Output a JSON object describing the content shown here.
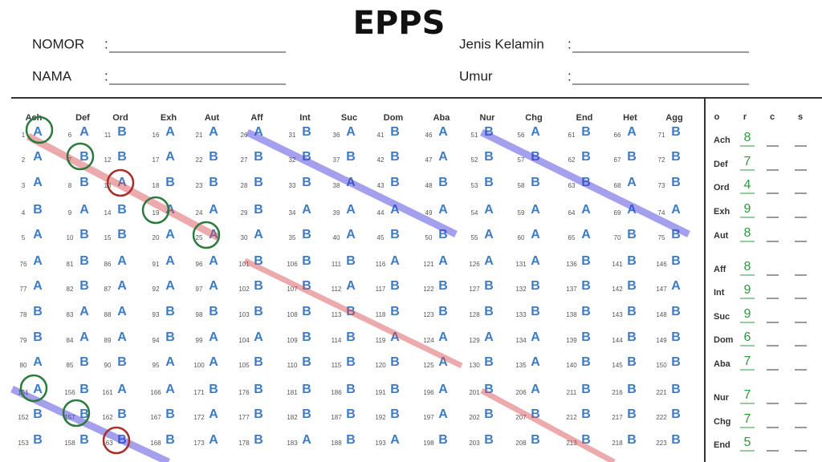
{
  "title": "EPPS",
  "form": {
    "fields": [
      {
        "label": "NOMOR",
        "sep": ":"
      },
      {
        "label": "NAMA",
        "sep": ":"
      },
      {
        "label": "Jenis Kelamin",
        "sep": ":"
      },
      {
        "label": "Umur",
        "sep": ":"
      }
    ]
  },
  "grid": {
    "columns": [
      "Ach",
      "Def",
      "Ord",
      "Exh",
      "Aut",
      "Aff",
      "Int",
      "Suc",
      "Dom",
      "Aba",
      "Nur",
      "Chg",
      "End",
      "Het",
      "Agg"
    ],
    "blocks": [
      {
        "rows": [
          {
            "numbers": [
              1,
              6,
              11,
              16,
              21,
              26,
              31,
              36,
              41,
              46,
              51,
              56,
              61,
              66,
              71
            ],
            "marks": [
              "A",
              "A",
              "B",
              "A",
              "A",
              "A",
              "B",
              "A",
              "B",
              "A",
              "B",
              "A",
              "B",
              "A",
              "B"
            ]
          },
          {
            "numbers": [
              2,
              7,
              12,
              17,
              22,
              27,
              32,
              37,
              42,
              47,
              52,
              57,
              62,
              67,
              72
            ],
            "marks": [
              "A",
              "B",
              "B",
              "A",
              "B",
              "B",
              "B",
              "B",
              "B",
              "A",
              "B",
              "B",
              "B",
              "B",
              "B"
            ]
          },
          {
            "numbers": [
              3,
              8,
              13,
              18,
              23,
              28,
              33,
              38,
              43,
              48,
              53,
              58,
              63,
              68,
              73
            ],
            "marks": [
              "A",
              "B",
              "A",
              "B",
              "B",
              "B",
              "B",
              "A",
              "B",
              "B",
              "B",
              "B",
              "B",
              "A",
              "B"
            ]
          },
          {
            "numbers": [
              4,
              9,
              14,
              19,
              24,
              29,
              34,
              39,
              44,
              49,
              54,
              59,
              64,
              69,
              74
            ],
            "marks": [
              "B",
              "A",
              "B",
              "A",
              "A",
              "B",
              "A",
              "A",
              "A",
              "A",
              "A",
              "A",
              "A",
              "A",
              "A"
            ]
          },
          {
            "numbers": [
              5,
              10,
              15,
              20,
              25,
              30,
              35,
              40,
              45,
              50,
              55,
              60,
              65,
              70,
              75
            ],
            "marks": [
              "A",
              "B",
              "B",
              "A",
              "A",
              "A",
              "B",
              "A",
              "B",
              "B",
              "A",
              "A",
              "A",
              "B",
              "B"
            ]
          }
        ]
      },
      {
        "rows": [
          {
            "numbers": [
              76,
              81,
              86,
              91,
              96,
              101,
              106,
              111,
              116,
              121,
              126,
              131,
              136,
              141,
              146
            ],
            "marks": [
              "A",
              "B",
              "A",
              "A",
              "A",
              "B",
              "B",
              "B",
              "A",
              "A",
              "A",
              "A",
              "B",
              "B",
              "B"
            ]
          },
          {
            "numbers": [
              77,
              82,
              87,
              92,
              97,
              102,
              107,
              112,
              117,
              122,
              127,
              132,
              137,
              142,
              147
            ],
            "marks": [
              "A",
              "B",
              "A",
              "A",
              "A",
              "B",
              "B",
              "A",
              "B",
              "B",
              "B",
              "B",
              "B",
              "B",
              "A"
            ]
          },
          {
            "numbers": [
              78,
              83,
              88,
              93,
              98,
              103,
              108,
              113,
              118,
              123,
              128,
              133,
              138,
              143,
              148
            ],
            "marks": [
              "B",
              "A",
              "A",
              "B",
              "B",
              "B",
              "B",
              "B",
              "B",
              "B",
              "B",
              "B",
              "B",
              "B",
              "B"
            ]
          },
          {
            "numbers": [
              79,
              84,
              89,
              94,
              99,
              104,
              109,
              114,
              119,
              124,
              129,
              134,
              139,
              144,
              149
            ],
            "marks": [
              "B",
              "A",
              "A",
              "B",
              "A",
              "A",
              "B",
              "B",
              "A",
              "A",
              "A",
              "A",
              "B",
              "B",
              "B"
            ]
          },
          {
            "numbers": [
              80,
              85,
              90,
              95,
              100,
              105,
              110,
              115,
              120,
              125,
              130,
              135,
              140,
              145,
              150
            ],
            "marks": [
              "A",
              "B",
              "B",
              "A",
              "A",
              "B",
              "B",
              "B",
              "B",
              "A",
              "B",
              "A",
              "B",
              "B",
              "B"
            ]
          }
        ]
      },
      {
        "rows": [
          {
            "numbers": [
              151,
              156,
              161,
              166,
              171,
              176,
              181,
              186,
              191,
              196,
              201,
              206,
              211,
              216,
              221
            ],
            "marks": [
              "A",
              "B",
              "A",
              "A",
              "B",
              "B",
              "B",
              "B",
              "B",
              "A",
              "B",
              "A",
              "B",
              "B",
              "B"
            ]
          },
          {
            "numbers": [
              152,
              157,
              162,
              167,
              172,
              177,
              182,
              187,
              192,
              197,
              202,
              207,
              212,
              217,
              222
            ],
            "marks": [
              "B",
              "B",
              "B",
              "B",
              "A",
              "B",
              "B",
              "B",
              "B",
              "A",
              "B",
              "B",
              "B",
              "B",
              "B"
            ]
          },
          {
            "numbers": [
              153,
              158,
              163,
              168,
              173,
              178,
              183,
              188,
              193,
              198,
              203,
              208,
              213,
              218,
              223
            ],
            "marks": [
              "B",
              "B",
              "B",
              "B",
              "A",
              "B",
              "A",
              "B",
              "A",
              "B",
              "B",
              "B",
              "B",
              "B",
              "B"
            ]
          }
        ]
      }
    ]
  },
  "scores": {
    "header": [
      "o",
      "r",
      "c",
      "s"
    ],
    "rows": [
      {
        "label": "Ach",
        "r": 8
      },
      {
        "label": "Def",
        "r": 7
      },
      {
        "label": "Ord",
        "r": 4
      },
      {
        "label": "Exh",
        "r": 9
      },
      {
        "label": "Aut",
        "r": 8
      },
      {
        "label": "Aff",
        "r": 8
      },
      {
        "label": "Int",
        "r": 9
      },
      {
        "label": "Suc",
        "r": 9
      },
      {
        "label": "Dom",
        "r": 6
      },
      {
        "label": "Aba",
        "r": 7
      },
      {
        "label": "Nur",
        "r": 7
      },
      {
        "label": "Chg",
        "r": 7
      },
      {
        "label": "End",
        "r": 5
      }
    ]
  }
}
